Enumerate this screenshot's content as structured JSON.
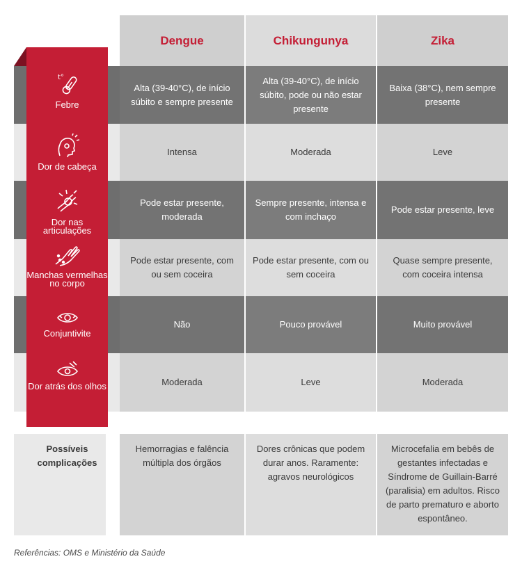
{
  "headers": [
    "Dengue",
    "Chikungunya",
    "Zika"
  ],
  "rows": [
    {
      "label": "Febre",
      "icon": "thermometer-icon",
      "cells": [
        "Alta (39-40°C), de início súbito e sempre presente",
        "Alta (39-40°C), de início súbito, pode ou não estar presente",
        "Baixa (38°C), nem sempre presente"
      ]
    },
    {
      "label": "Dor de cabeça",
      "icon": "headache-icon",
      "cells": [
        "Intensa",
        "Moderada",
        "Leve"
      ]
    },
    {
      "label": "Dor nas articulações",
      "icon": "joint-pain-icon",
      "cells": [
        "Pode estar presente, moderada",
        "Sempre presente, intensa e com inchaço",
        "Pode estar presente, leve"
      ]
    },
    {
      "label": "Manchas vermelhas no corpo",
      "icon": "rash-hand-icon",
      "cells": [
        "Pode estar presente, com ou sem coceira",
        "Pode estar presente, com ou sem coceira",
        "Quase sempre presente, com coceira intensa"
      ]
    },
    {
      "label": "Conjuntivite",
      "icon": "eye-icon",
      "cells": [
        "Não",
        "Pouco provável",
        "Muito provável"
      ]
    },
    {
      "label": "Dor atrás dos olhos",
      "icon": "eye-pain-icon",
      "cells": [
        "Moderada",
        "Leve",
        "Moderada"
      ]
    }
  ],
  "complications": {
    "label": "Possíveis complicações",
    "cells": [
      "Hemorragias e falência múltipla dos órgãos",
      "Dores crônicas que podem durar anos. Raramente: agravos neurológicos",
      "Microcefalia em bebês de gestantes infectadas e Síndrome de Guillain-Barré (paralisia) em adultos. Risco de parto prematuro e aborto espontâneo."
    ]
  },
  "reference": "Referências: OMS e Ministério da Saúde",
  "colors": {
    "accent": "#c41e35",
    "dark_row": "#6e6e6e",
    "light_row": "#d6d6d6"
  }
}
